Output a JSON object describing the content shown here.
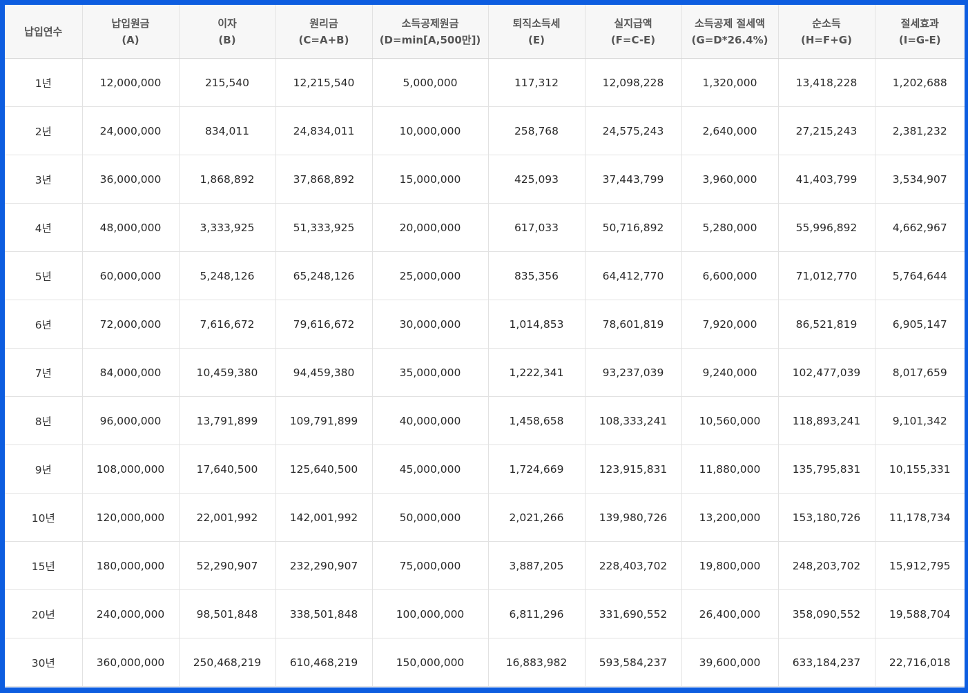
{
  "table": {
    "headers": [
      {
        "line1": "납입연수",
        "line2": ""
      },
      {
        "line1": "납입원금",
        "line2": "(A)"
      },
      {
        "line1": "이자",
        "line2": "(B)"
      },
      {
        "line1": "원리금",
        "line2": "(C=A+B)"
      },
      {
        "line1": "소득공제원금",
        "line2": "(D=min[A,500만])"
      },
      {
        "line1": "퇴직소득세",
        "line2": "(E)"
      },
      {
        "line1": "실지급액",
        "line2": "(F=C-E)"
      },
      {
        "line1": "소득공제 절세액",
        "line2": "(G=D*26.4%)"
      },
      {
        "line1": "순소득",
        "line2": "(H=F+G)"
      },
      {
        "line1": "절세효과",
        "line2": "(I=G-E)"
      }
    ],
    "rows": [
      [
        "1년",
        "12,000,000",
        "215,540",
        "12,215,540",
        "5,000,000",
        "117,312",
        "12,098,228",
        "1,320,000",
        "13,418,228",
        "1,202,688"
      ],
      [
        "2년",
        "24,000,000",
        "834,011",
        "24,834,011",
        "10,000,000",
        "258,768",
        "24,575,243",
        "2,640,000",
        "27,215,243",
        "2,381,232"
      ],
      [
        "3년",
        "36,000,000",
        "1,868,892",
        "37,868,892",
        "15,000,000",
        "425,093",
        "37,443,799",
        "3,960,000",
        "41,403,799",
        "3,534,907"
      ],
      [
        "4년",
        "48,000,000",
        "3,333,925",
        "51,333,925",
        "20,000,000",
        "617,033",
        "50,716,892",
        "5,280,000",
        "55,996,892",
        "4,662,967"
      ],
      [
        "5년",
        "60,000,000",
        "5,248,126",
        "65,248,126",
        "25,000,000",
        "835,356",
        "64,412,770",
        "6,600,000",
        "71,012,770",
        "5,764,644"
      ],
      [
        "6년",
        "72,000,000",
        "7,616,672",
        "79,616,672",
        "30,000,000",
        "1,014,853",
        "78,601,819",
        "7,920,000",
        "86,521,819",
        "6,905,147"
      ],
      [
        "7년",
        "84,000,000",
        "10,459,380",
        "94,459,380",
        "35,000,000",
        "1,222,341",
        "93,237,039",
        "9,240,000",
        "102,477,039",
        "8,017,659"
      ],
      [
        "8년",
        "96,000,000",
        "13,791,899",
        "109,791,899",
        "40,000,000",
        "1,458,658",
        "108,333,241",
        "10,560,000",
        "118,893,241",
        "9,101,342"
      ],
      [
        "9년",
        "108,000,000",
        "17,640,500",
        "125,640,500",
        "45,000,000",
        "1,724,669",
        "123,915,831",
        "11,880,000",
        "135,795,831",
        "10,155,331"
      ],
      [
        "10년",
        "120,000,000",
        "22,001,992",
        "142,001,992",
        "50,000,000",
        "2,021,266",
        "139,980,726",
        "13,200,000",
        "153,180,726",
        "11,178,734"
      ],
      [
        "15년",
        "180,000,000",
        "52,290,907",
        "232,290,907",
        "75,000,000",
        "3,887,205",
        "228,403,702",
        "19,800,000",
        "248,203,702",
        "15,912,795"
      ],
      [
        "20년",
        "240,000,000",
        "98,501,848",
        "338,501,848",
        "100,000,000",
        "6,811,296",
        "331,690,552",
        "26,400,000",
        "358,090,552",
        "19,588,704"
      ],
      [
        "30년",
        "360,000,000",
        "250,468,219",
        "610,468,219",
        "150,000,000",
        "16,883,982",
        "593,584,237",
        "39,600,000",
        "633,184,237",
        "22,716,018"
      ]
    ]
  }
}
